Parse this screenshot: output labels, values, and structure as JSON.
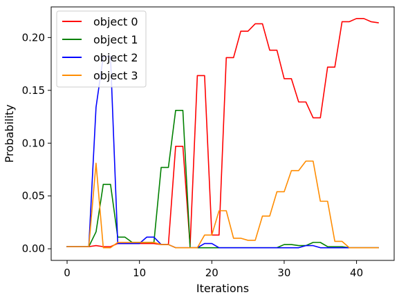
{
  "chart_data": {
    "type": "line",
    "xlabel": "Iterations",
    "ylabel": "Probability",
    "xlim": [
      -2.2,
      45.2
    ],
    "ylim": [
      -0.011,
      0.229
    ],
    "xticks": [
      0,
      10,
      20,
      30,
      40
    ],
    "yticks": [
      0.0,
      0.05,
      0.1,
      0.15,
      0.2
    ],
    "ytick_labels": [
      "0.00",
      "0.05",
      "0.10",
      "0.15",
      "0.20"
    ],
    "grid": false,
    "legend_position": "top-left",
    "x": [
      0,
      1,
      2,
      3,
      4,
      5,
      6,
      7,
      8,
      9,
      10,
      11,
      12,
      13,
      14,
      15,
      16,
      17,
      18,
      19,
      20,
      21,
      22,
      23,
      24,
      25,
      26,
      27,
      28,
      29,
      30,
      31,
      32,
      33,
      34,
      35,
      36,
      37,
      38,
      39,
      40,
      41,
      42,
      43
    ],
    "series": [
      {
        "name": "object 0",
        "color": "#ff0000",
        "values": [
          0.002,
          0.002,
          0.002,
          0.002,
          0.003,
          0.002,
          0.002,
          0.005,
          0.005,
          0.005,
          0.005,
          0.005,
          0.005,
          0.004,
          0.004,
          0.097,
          0.097,
          0.003,
          0.164,
          0.164,
          0.013,
          0.013,
          0.181,
          0.181,
          0.206,
          0.206,
          0.213,
          0.213,
          0.188,
          0.188,
          0.161,
          0.161,
          0.139,
          0.139,
          0.124,
          0.124,
          0.172,
          0.172,
          0.215,
          0.215,
          0.218,
          0.218,
          0.215,
          0.214
        ]
      },
      {
        "name": "object 1",
        "color": "#008000",
        "values": [
          0.002,
          0.002,
          0.002,
          0.002,
          0.016,
          0.061,
          0.061,
          0.011,
          0.011,
          0.006,
          0.006,
          0.006,
          0.006,
          0.077,
          0.077,
          0.131,
          0.131,
          0.001,
          0.001,
          0.001,
          0.001,
          0.001,
          0.001,
          0.001,
          0.001,
          0.001,
          0.001,
          0.001,
          0.001,
          0.001,
          0.004,
          0.004,
          0.003,
          0.003,
          0.006,
          0.006,
          0.002,
          0.002,
          0.002,
          0.001,
          0.001,
          0.001,
          0.001,
          0.001
        ]
      },
      {
        "name": "object 2",
        "color": "#0000ff",
        "values": [
          0.002,
          0.002,
          0.002,
          0.002,
          0.134,
          0.182,
          0.182,
          0.005,
          0.005,
          0.005,
          0.005,
          0.011,
          0.011,
          0.004,
          0.004,
          0.001,
          0.001,
          0.001,
          0.001,
          0.005,
          0.005,
          0.001,
          0.001,
          0.001,
          0.001,
          0.001,
          0.001,
          0.001,
          0.001,
          0.001,
          0.001,
          0.001,
          0.001,
          0.003,
          0.003,
          0.001,
          0.001,
          0.001,
          0.001,
          0.001,
          0.001,
          0.001,
          0.001,
          0.001
        ]
      },
      {
        "name": "object 3",
        "color": "#ff8c00",
        "values": [
          0.002,
          0.002,
          0.002,
          0.002,
          0.081,
          0.001,
          0.001,
          0.006,
          0.006,
          0.006,
          0.006,
          0.006,
          0.006,
          0.004,
          0.004,
          0.001,
          0.001,
          0.001,
          0.001,
          0.013,
          0.013,
          0.036,
          0.036,
          0.01,
          0.01,
          0.008,
          0.008,
          0.031,
          0.031,
          0.054,
          0.054,
          0.074,
          0.074,
          0.083,
          0.083,
          0.045,
          0.045,
          0.007,
          0.007,
          0.001,
          0.001,
          0.001,
          0.001,
          0.001
        ]
      }
    ]
  }
}
